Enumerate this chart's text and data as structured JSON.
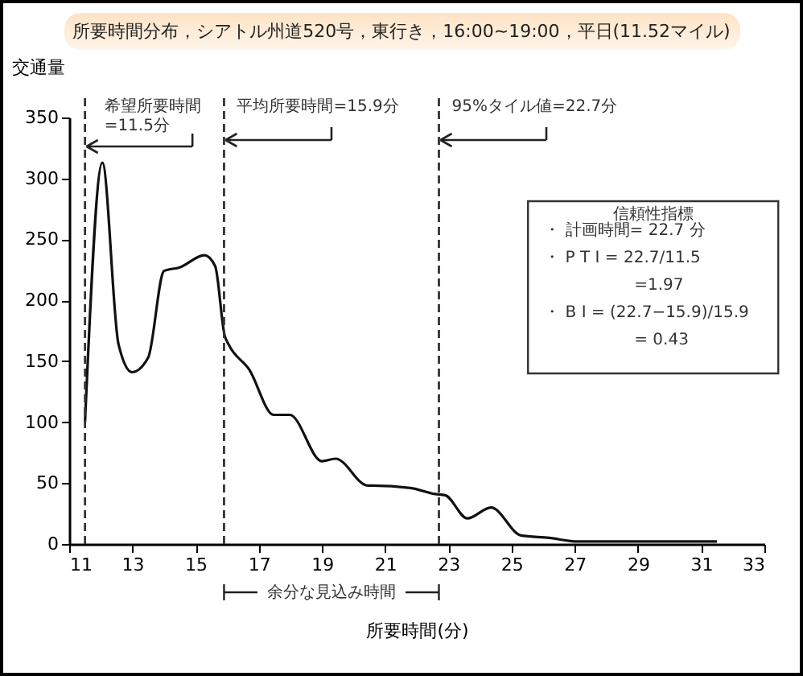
{
  "chart_data": {
    "type": "line",
    "title": "所要時間分布，シアトル州道520号，東行き，16:00~19:00，平日(11.52マイル)",
    "xlabel": "所要時間(分)",
    "ylabel": "交通量",
    "x": [
      11.5,
      12.05,
      12.56,
      12.99,
      13.5,
      14.0,
      14.5,
      15.28,
      15.62,
      15.92,
      16.04,
      16.7,
      17.47,
      17.98,
      19.0,
      19.43,
      20.45,
      20.6,
      21.8,
      22.58,
      22.9,
      23.6,
      24.35,
      25.3,
      26.2,
      27.1,
      31.5
    ],
    "series": [
      {
        "color": "#111111",
        "values": [
          100,
          313,
          164,
          141,
          153,
          224,
          227,
          237,
          228,
          171,
          164,
          143,
          106,
          106,
          68,
          70,
          48,
          48,
          46,
          41,
          40,
          21,
          30,
          7,
          5,
          2,
          2
        ]
      }
    ],
    "xlim": [
      11,
      33
    ],
    "ylim": [
      0,
      350
    ],
    "xticks": [
      11,
      13,
      15,
      17,
      19,
      21,
      23,
      25,
      27,
      29,
      31,
      33
    ],
    "yticks": [
      0,
      50,
      100,
      150,
      200,
      250,
      300,
      350
    ],
    "grid": false,
    "marker": "none",
    "line_style": "solid",
    "ref_lines": [
      {
        "axis": "x",
        "value": 11.5,
        "label": "希望所要時間=11.5分",
        "color": "#333333",
        "line_style": "dashed"
      },
      {
        "axis": "x",
        "value": 15.9,
        "label": "平均所要時間=15.9分",
        "color": "#333333",
        "line_style": "dashed"
      },
      {
        "axis": "x",
        "value": 22.7,
        "label": "95%タイル値=22.7分",
        "color": "#333333",
        "line_style": "dashed"
      }
    ],
    "annotations": [
      "信頼性指標",
      "・ 計画時間= 22.7 分",
      "・ P T I  = 22.7/11.5",
      "=1.97",
      "・ B I  = (22.7−15.9)/15.9",
      "= 0.43",
      "余分な見込み時間"
    ]
  }
}
